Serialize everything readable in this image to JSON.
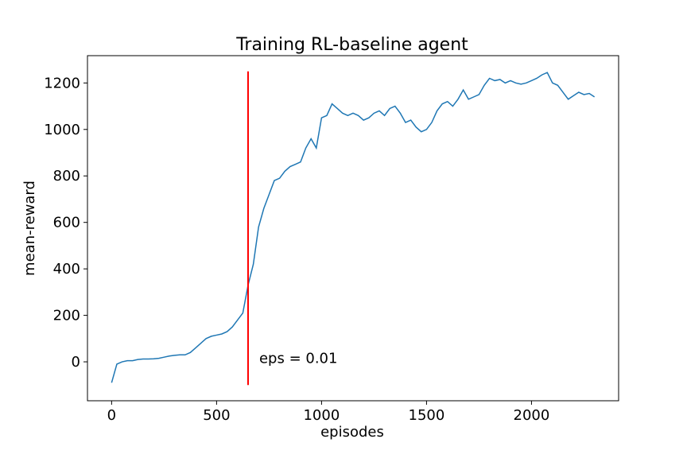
{
  "chart_data": {
    "type": "line",
    "title": "Training RL-baseline agent",
    "xlabel": "episodes",
    "ylabel": "mean-reward",
    "x": [
      0,
      25,
      50,
      75,
      100,
      125,
      150,
      175,
      200,
      225,
      250,
      275,
      300,
      325,
      350,
      375,
      400,
      425,
      450,
      475,
      500,
      525,
      550,
      575,
      600,
      625,
      650,
      675,
      700,
      725,
      750,
      775,
      800,
      825,
      850,
      875,
      900,
      925,
      950,
      975,
      1000,
      1025,
      1050,
      1075,
      1100,
      1125,
      1150,
      1175,
      1200,
      1225,
      1250,
      1275,
      1300,
      1325,
      1350,
      1375,
      1400,
      1425,
      1450,
      1475,
      1500,
      1525,
      1550,
      1575,
      1600,
      1625,
      1650,
      1675,
      1700,
      1725,
      1750,
      1775,
      1800,
      1825,
      1850,
      1875,
      1900,
      1925,
      1950,
      1975,
      2000,
      2025,
      2050,
      2075,
      2100,
      2125,
      2150,
      2175,
      2200,
      2225,
      2250,
      2275,
      2300
    ],
    "series": [
      {
        "color": "#1f77b4",
        "values": [
          -90,
          -10,
          0,
          5,
          5,
          10,
          12,
          12,
          13,
          15,
          20,
          25,
          28,
          30,
          30,
          40,
          60,
          80,
          100,
          110,
          115,
          120,
          130,
          150,
          180,
          210,
          330,
          420,
          580,
          660,
          720,
          780,
          790,
          820,
          840,
          850,
          860,
          920,
          960,
          920,
          1050,
          1060,
          1110,
          1090,
          1070,
          1060,
          1070,
          1060,
          1040,
          1050,
          1070,
          1080,
          1060,
          1090,
          1100,
          1070,
          1030,
          1040,
          1010,
          990,
          1000,
          1030,
          1080,
          1110,
          1120,
          1100,
          1130,
          1170,
          1130,
          1140,
          1150,
          1190,
          1220,
          1210,
          1215,
          1200,
          1210,
          1200,
          1195,
          1200,
          1210,
          1220,
          1235,
          1245,
          1200,
          1190,
          1160,
          1130,
          1145,
          1160,
          1150,
          1155,
          1140
        ]
      }
    ],
    "vline": {
      "x": 650,
      "ymin": -100,
      "ymax": 1250,
      "color": "#ff0000"
    },
    "annotation": "eps = 0.01",
    "xlim": [
      -115,
      2415
    ],
    "ylim": [
      -167.5,
      1317.5
    ],
    "xticks": [
      0,
      500,
      1000,
      1500,
      2000
    ],
    "yticks": [
      0,
      200,
      400,
      600,
      800,
      1000,
      1200
    ]
  }
}
